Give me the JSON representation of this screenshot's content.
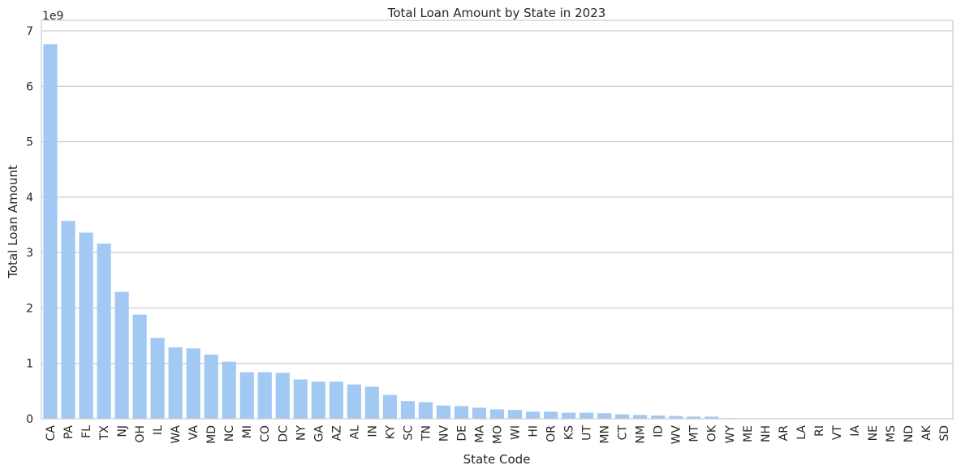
{
  "chart_data": {
    "type": "bar",
    "title": "Total Loan Amount by State in 2023",
    "xlabel": "State Code",
    "ylabel": "Total Loan Amount",
    "y_offset_label": "1e9",
    "ylim": [
      0,
      7.0
    ],
    "yticks": [
      "0",
      "1",
      "2",
      "3",
      "4",
      "5",
      "6",
      "7"
    ],
    "grid": true,
    "bar_color": "#a1c9f4",
    "categories": [
      "CA",
      "PA",
      "FL",
      "TX",
      "NJ",
      "OH",
      "IL",
      "WA",
      "VA",
      "MD",
      "NC",
      "MI",
      "CO",
      "DC",
      "NY",
      "GA",
      "AZ",
      "AL",
      "IN",
      "KY",
      "SC",
      "TN",
      "NV",
      "DE",
      "MA",
      "MO",
      "WI",
      "HI",
      "OR",
      "KS",
      "UT",
      "MN",
      "CT",
      "NM",
      "ID",
      "WV",
      "MT",
      "OK",
      "WY",
      "ME",
      "NH",
      "AR",
      "LA",
      "RI",
      "VT",
      "IA",
      "NE",
      "MS",
      "ND",
      "AK",
      "SD"
    ],
    "values": [
      6.76,
      3.57,
      3.36,
      3.16,
      2.29,
      1.88,
      1.46,
      1.29,
      1.27,
      1.16,
      1.03,
      0.84,
      0.84,
      0.83,
      0.71,
      0.67,
      0.67,
      0.62,
      0.58,
      0.43,
      0.32,
      0.3,
      0.24,
      0.23,
      0.2,
      0.17,
      0.16,
      0.13,
      0.13,
      0.11,
      0.11,
      0.1,
      0.08,
      0.07,
      0.06,
      0.05,
      0.04,
      0.04,
      0.01,
      0.005,
      0.005,
      0.004,
      0.004,
      0.003,
      0.003,
      0.003,
      0.002,
      0.002,
      0.002,
      0.001,
      0.001
    ]
  }
}
